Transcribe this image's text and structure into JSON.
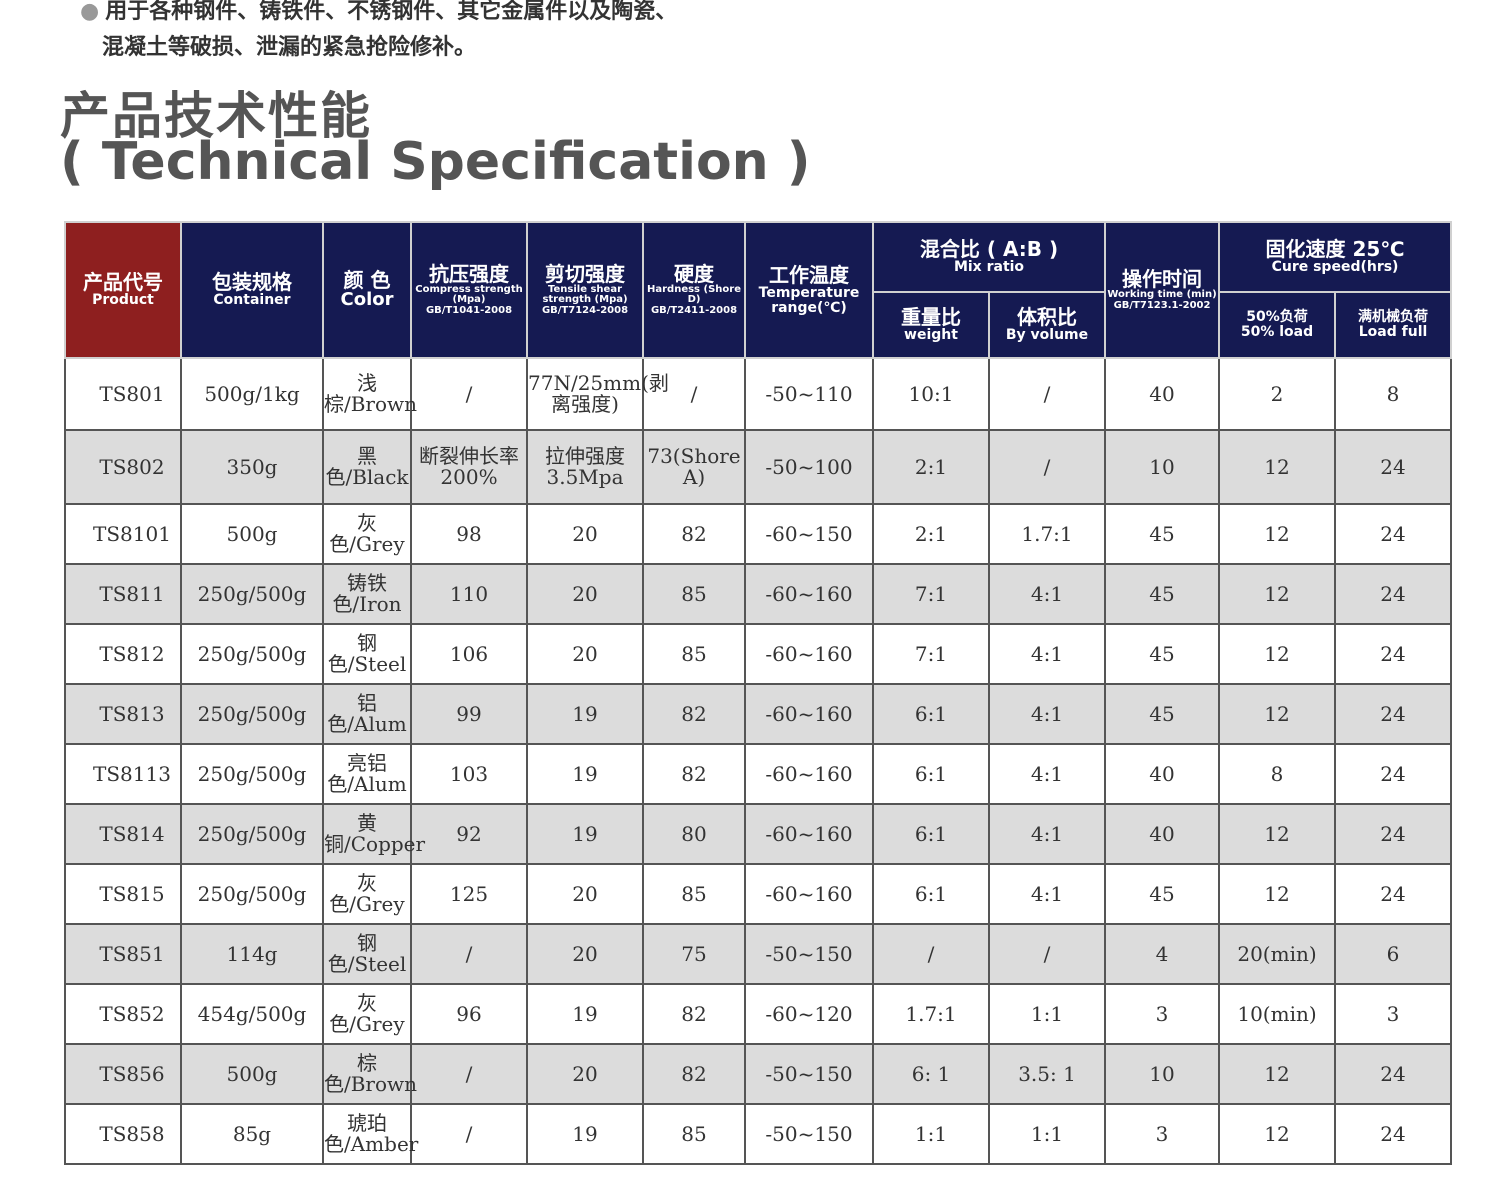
{
  "intro": {
    "line1": "用于各种钢件、铸铁件、不锈钢件、其它金属件以及陶瓷、",
    "line2": "混凝土等破损、泄漏的紧急抢险修补。"
  },
  "heading": {
    "cn": "产品技术性能",
    "en": "( Technical Specification )"
  },
  "headers": {
    "product": {
      "cn": "产品代号",
      "en": "Product"
    },
    "container": {
      "cn": "包装规格",
      "en": "Container"
    },
    "color": {
      "cn": "颜 色",
      "en": "Color"
    },
    "compress": {
      "cn": "抗压强度",
      "en": "Compress strength (Mpa)",
      "std": "GB/T1041-2008"
    },
    "tensile": {
      "cn": "剪切强度",
      "en": "Tensile shear strength (Mpa)",
      "std": "GB/T7124-2008"
    },
    "hardness": {
      "cn": "硬度",
      "en": "Hardness (Shore D)",
      "std": "GB/T2411-2008"
    },
    "temperature": {
      "cn": "工作温度",
      "en": "Temperature range(℃)"
    },
    "mix": {
      "cn": "混合比 ( A:B )",
      "en": "Mix ratio"
    },
    "weight": {
      "cn": "重量比",
      "en": "weight"
    },
    "volume": {
      "cn": "体积比",
      "en": "By volume"
    },
    "working": {
      "cn": "操作时间",
      "en": "Working time (min)",
      "std": "GB/T7123.1-2002"
    },
    "cure": {
      "cn": "固化速度 25℃",
      "en": "Cure speed(hrs)"
    },
    "half_load": {
      "cn": "50%负荷",
      "en": "50% load"
    },
    "full_load": {
      "cn": "满机械负荷",
      "en": "Load full"
    }
  },
  "rows": [
    [
      "TS801",
      "500g/1kg",
      "浅棕/Brown",
      "/",
      "77N/25mm(剥离强度)",
      "/",
      "-50~110",
      "10:1",
      "/",
      "40",
      "2",
      "8"
    ],
    [
      "TS802",
      "350g",
      "黑色/Black",
      "断裂伸长率200%",
      "拉伸强度3.5Mpa",
      "73(Shore A)",
      "-50~100",
      "2:1",
      "/",
      "10",
      "12",
      "24"
    ],
    [
      "TS8101",
      "500g",
      "灰色/Grey",
      "98",
      "20",
      "82",
      "-60~150",
      "2:1",
      "1.7:1",
      "45",
      "12",
      "24"
    ],
    [
      "TS811",
      "250g/500g",
      "铸铁色/Iron",
      "110",
      "20",
      "85",
      "-60~160",
      "7:1",
      "4:1",
      "45",
      "12",
      "24"
    ],
    [
      "TS812",
      "250g/500g",
      "钢色/Steel",
      "106",
      "20",
      "85",
      "-60~160",
      "7:1",
      "4:1",
      "45",
      "12",
      "24"
    ],
    [
      "TS813",
      "250g/500g",
      "铝色/Alum",
      "99",
      "19",
      "82",
      "-60~160",
      "6:1",
      "4:1",
      "45",
      "12",
      "24"
    ],
    [
      "TS8113",
      "250g/500g",
      "亮铝色/Alum",
      "103",
      "19",
      "82",
      "-60~160",
      "6:1",
      "4:1",
      "40",
      "8",
      "24"
    ],
    [
      "TS814",
      "250g/500g",
      "黄铜/Copper",
      "92",
      "19",
      "80",
      "-60~160",
      "6:1",
      "4:1",
      "40",
      "12",
      "24"
    ],
    [
      "TS815",
      "250g/500g",
      "灰色/Grey",
      "125",
      "20",
      "85",
      "-60~160",
      "6:1",
      "4:1",
      "45",
      "12",
      "24"
    ],
    [
      "TS851",
      "114g",
      "钢色/Steel",
      "/",
      "20",
      "75",
      "-50~150",
      "/",
      "/",
      "4",
      "20(min)",
      "6"
    ],
    [
      "TS852",
      "454g/500g",
      "灰色/Grey",
      "96",
      "19",
      "82",
      "-60~120",
      "1.7:1",
      "1:1",
      "3",
      "10(min)",
      "3"
    ],
    [
      "TS856",
      "500g",
      "棕色/Brown",
      "/",
      "20",
      "82",
      "-50~150",
      "6: 1",
      "3.5: 1",
      "10",
      "12",
      "24"
    ],
    [
      "TS858",
      "85g",
      "琥珀色/Amber",
      "/",
      "19",
      "85",
      "-50~150",
      "1:1",
      "1:1",
      "3",
      "12",
      "24"
    ]
  ]
}
